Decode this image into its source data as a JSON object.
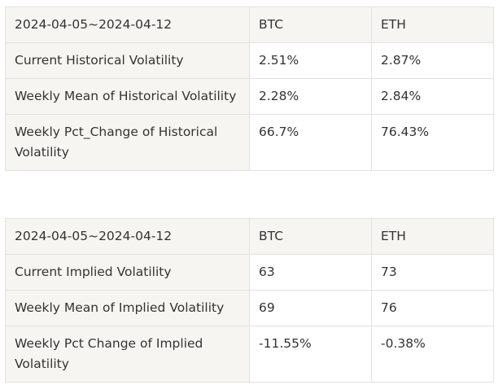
{
  "historical_volatility_table": {
    "header": {
      "period": "2024-04-05~2024-04-12",
      "col_btc": "BTC",
      "col_eth": "ETH"
    },
    "rows": [
      {
        "label": "Current Historical Volatility",
        "btc": "2.51%",
        "eth": "2.87%"
      },
      {
        "label": "Weekly Mean of Historical Volatility",
        "btc": "2.28%",
        "eth": "2.84%"
      },
      {
        "label": "Weekly Pct_Change of Historical Volatility",
        "btc": "66.7%",
        "eth": "76.43%"
      }
    ]
  },
  "implied_volatility_table": {
    "header": {
      "period": "2024-04-05~2024-04-12",
      "col_btc": "BTC",
      "col_eth": "ETH"
    },
    "rows": [
      {
        "label": "Current Implied Volatility",
        "btc": "63",
        "eth": "73"
      },
      {
        "label": "Weekly Mean of Implied Volatility",
        "btc": "69",
        "eth": "76"
      },
      {
        "label": "Weekly Pct Change of Implied Volatility",
        "btc": "-11.55%",
        "eth": "-0.38%"
      }
    ]
  }
}
